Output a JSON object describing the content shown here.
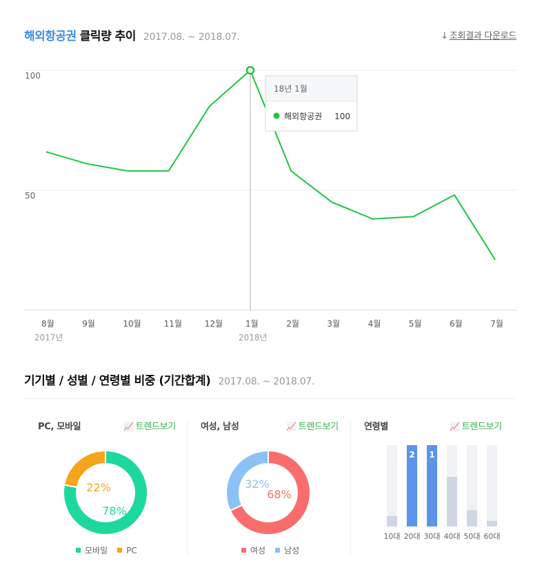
{
  "trend": {
    "keyword": "해외항공권",
    "title": "클릭량 추이",
    "period": "2017.08. ~ 2018.07.",
    "download_label": "조회결과 다운로드",
    "download_icon": "download-arrow-icon"
  },
  "tooltip": {
    "date": "18년 1월",
    "series": "해외항공권",
    "value": "100"
  },
  "breakdown": {
    "title": "기기별 / 성별 / 연령별 비중 (기간합계)",
    "period": "2017.08. ~ 2018.07.",
    "trend_label": "트렌드보기",
    "trend_icon": "trend-chart-icon",
    "device_title": "PC, 모바일",
    "gender_title": "여성, 남성",
    "age_title": "연령별"
  },
  "chart_data": [
    {
      "type": "line",
      "title": "해외항공권 클릭량 추이",
      "categories": [
        "8월",
        "9월",
        "10월",
        "11월",
        "12월",
        "1월",
        "2월",
        "3월",
        "4월",
        "5월",
        "6월",
        "7월"
      ],
      "year_labels": [
        {
          "index": 0,
          "label": "2017년"
        },
        {
          "index": 5,
          "label": "2018년"
        }
      ],
      "series": [
        {
          "name": "해외항공권",
          "color": "#1ec43f",
          "values": [
            66,
            61,
            58,
            58,
            85,
            100,
            58,
            45,
            38,
            39,
            48,
            21
          ]
        }
      ],
      "yticks": [
        100,
        50
      ],
      "ylim": [
        0,
        100
      ],
      "grid": true,
      "highlight_index": 5
    },
    {
      "type": "pie",
      "title": "PC, 모바일",
      "labels": [
        "모바일",
        "PC"
      ],
      "values": [
        78,
        22
      ],
      "value_labels": [
        "78%",
        "22%"
      ],
      "colors": [
        "#1dd89d",
        "#f6a419"
      ]
    },
    {
      "type": "pie",
      "title": "여성, 남성",
      "labels": [
        "여성",
        "남성"
      ],
      "values": [
        68,
        32
      ],
      "value_labels": [
        "68%",
        "32%"
      ],
      "colors": [
        "#f96d6d",
        "#8cc1f5"
      ]
    },
    {
      "type": "bar",
      "title": "연령별",
      "categories": [
        "10대",
        "20대",
        "30대",
        "40대",
        "50대",
        "60대"
      ],
      "values": [
        13,
        100,
        100,
        61,
        20,
        7
      ],
      "ylim": [
        0,
        100
      ],
      "rank_labels": [
        "",
        "2",
        "1",
        "",
        "",
        ""
      ],
      "highlight_color": "#5b94e8",
      "bar_color": "#d0d6e6",
      "track_color": "#f1f2f5"
    }
  ]
}
